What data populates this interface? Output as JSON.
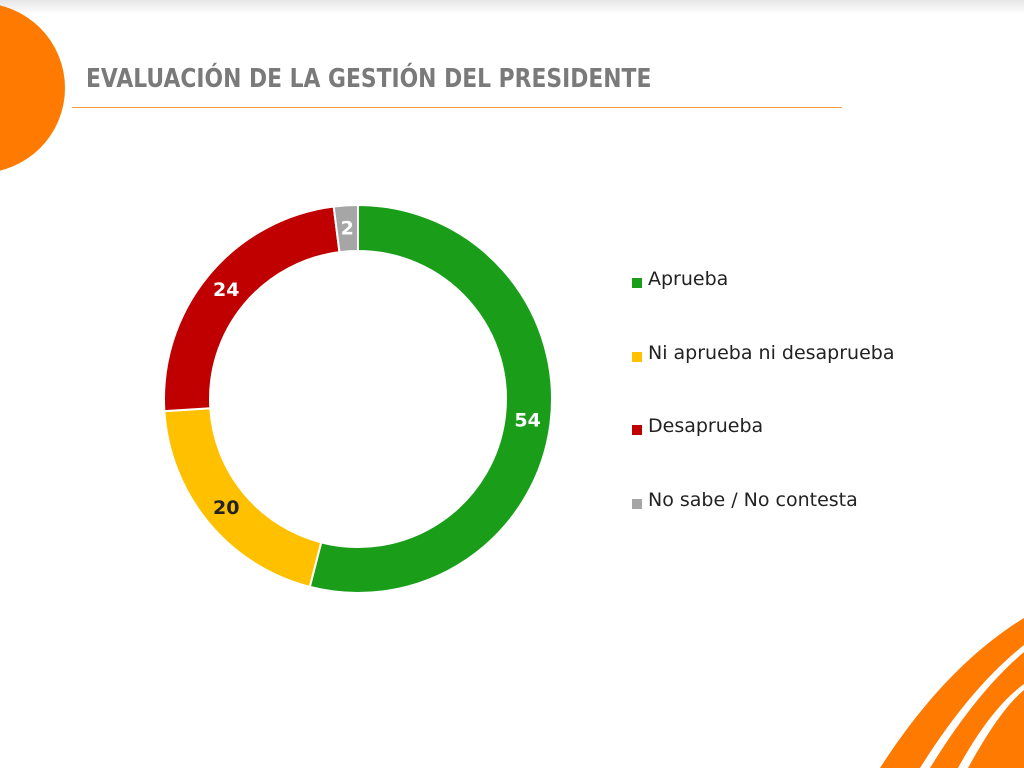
{
  "slide": {
    "title": "EVALUACIÓN DE LA GESTIÓN DEL PRESIDENTE",
    "accent_color": "#ff7a00"
  },
  "chart_data": {
    "type": "pie",
    "donut": true,
    "title": "",
    "legend_position": "right",
    "categories": [
      "Aprueba",
      "Ni aprueba ni desaprueba",
      "Desaprueba",
      "No sabe / No contesta"
    ],
    "values": [
      54,
      20,
      24,
      2
    ],
    "labels": [
      "54",
      "20",
      "24",
      "2"
    ],
    "colors": [
      "#1a9e1a",
      "#ffc000",
      "#c00000",
      "#a6a6a6"
    ],
    "label_colors": [
      "#ffffff",
      "#222222",
      "#ffffff",
      "#ffffff"
    ]
  }
}
